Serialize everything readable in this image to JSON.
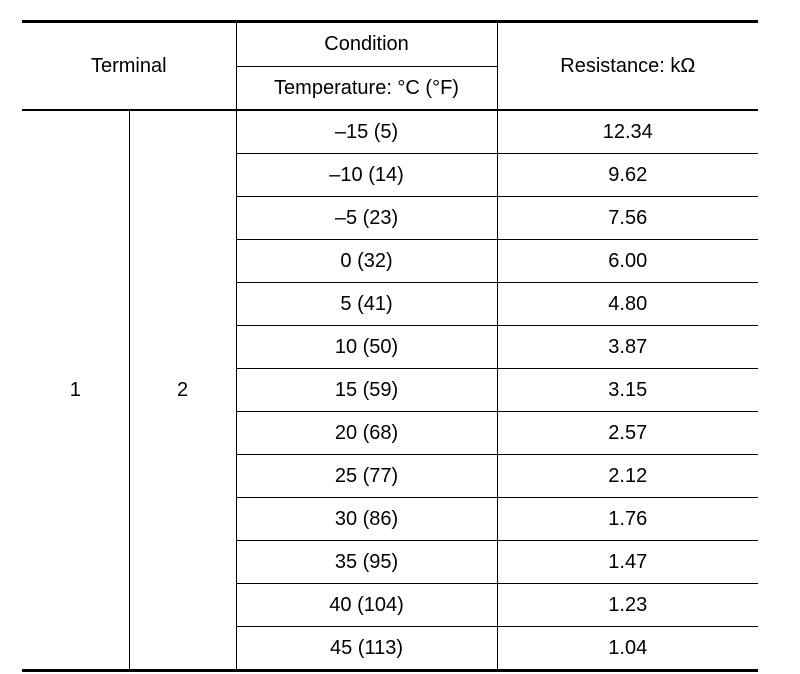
{
  "header": {
    "terminal": "Terminal",
    "condition": "Condition",
    "temperature": "Temperature: °C (°F)",
    "resistance": "Resistance: kΩ"
  },
  "terminals": {
    "a": "1",
    "b": "2"
  },
  "rows": [
    {
      "temp": "–15 (5)",
      "res": "12.34"
    },
    {
      "temp": "–10 (14)",
      "res": "9.62"
    },
    {
      "temp": "–5 (23)",
      "res": "7.56"
    },
    {
      "temp": "0 (32)",
      "res": "6.00"
    },
    {
      "temp": "5 (41)",
      "res": "4.80"
    },
    {
      "temp": "10 (50)",
      "res": "3.87"
    },
    {
      "temp": "15 (59)",
      "res": "3.15"
    },
    {
      "temp": "20 (68)",
      "res": "2.57"
    },
    {
      "temp": "25 (77)",
      "res": "2.12"
    },
    {
      "temp": "30 (86)",
      "res": "1.76"
    },
    {
      "temp": "35 (95)",
      "res": "1.47"
    },
    {
      "temp": "40 (104)",
      "res": "1.23"
    },
    {
      "temp": "45 (113)",
      "res": "1.04"
    }
  ]
}
